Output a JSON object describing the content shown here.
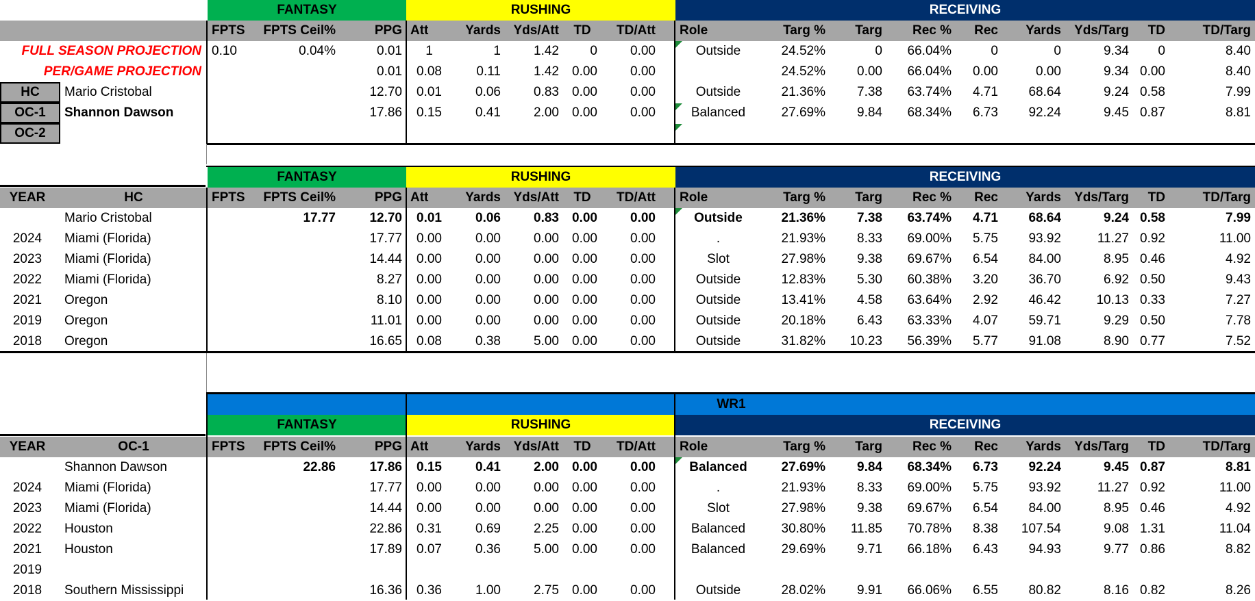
{
  "sections": {
    "fantasy": "FANTASY",
    "rushing": "RUSHING",
    "receiving": "RECEIVING",
    "wr1": "WR1"
  },
  "col_headers": [
    "FPTS",
    "FPTS Ceil%",
    "PPG",
    "Att",
    "Yards",
    "Yds/Att",
    "TD",
    "TD/Att",
    "Role",
    "Targ %",
    "Targ",
    "Rec %",
    "Rec",
    "Yards",
    "Yds/Targ",
    "TD",
    "TD/Targ"
  ],
  "projection": {
    "full_label": "FULL SEASON PROJECTION",
    "pergame_label": "PER/GAME PROJECTION",
    "full": [
      "0.10",
      "0.04%",
      "0.01",
      "1",
      "1",
      "1.42",
      "0",
      "0.00",
      "Outside",
      "24.52%",
      "0",
      "66.04%",
      "0",
      "0",
      "9.34",
      "0",
      "8.40"
    ],
    "pergame": [
      "",
      "",
      "0.01",
      "0.08",
      "0.11",
      "1.42",
      "0.00",
      "0.00",
      "",
      "24.52%",
      "0.00",
      "66.04%",
      "0.00",
      "0.00",
      "9.34",
      "0.00",
      "8.40"
    ]
  },
  "coaches": [
    {
      "role": "HC",
      "name": "Mario Cristobal",
      "values": [
        "",
        "",
        "12.70",
        "0.01",
        "0.06",
        "0.83",
        "0.00",
        "0.00",
        "Outside",
        "21.36%",
        "7.38",
        "63.74%",
        "4.71",
        "68.64",
        "9.24",
        "0.58",
        "7.99"
      ]
    },
    {
      "role": "OC-1",
      "name": "Shannon Dawson",
      "values": [
        "",
        "",
        "17.86",
        "0.15",
        "0.41",
        "2.00",
        "0.00",
        "0.00",
        "Balanced",
        "27.69%",
        "9.84",
        "68.34%",
        "6.73",
        "92.24",
        "9.45",
        "0.87",
        "8.81"
      ]
    },
    {
      "role": "OC-2",
      "name": "",
      "values": [
        "",
        "",
        "",
        "",
        "",
        "",
        "",
        "",
        "",
        "",
        "",
        "",
        "",
        "",
        "",
        "",
        ""
      ]
    }
  ],
  "hc_table": {
    "year_header": "YEAR",
    "name_header": "HC",
    "summary": {
      "year": "",
      "name": "Mario Cristobal",
      "values": [
        "",
        "17.77",
        "12.70",
        "0.01",
        "0.06",
        "0.83",
        "0.00",
        "0.00",
        "Outside",
        "21.36%",
        "7.38",
        "63.74%",
        "4.71",
        "68.64",
        "9.24",
        "0.58",
        "7.99"
      ]
    },
    "rows": [
      {
        "year": "2024",
        "name": "Miami (Florida)",
        "values": [
          "",
          "",
          "17.77",
          "0.00",
          "0.00",
          "0.00",
          "0.00",
          "0.00",
          ".",
          "21.93%",
          "8.33",
          "69.00%",
          "5.75",
          "93.92",
          "11.27",
          "0.92",
          "11.00"
        ]
      },
      {
        "year": "2023",
        "name": "Miami (Florida)",
        "values": [
          "",
          "",
          "14.44",
          "0.00",
          "0.00",
          "0.00",
          "0.00",
          "0.00",
          "Slot",
          "27.98%",
          "9.38",
          "69.67%",
          "6.54",
          "84.00",
          "8.95",
          "0.46",
          "4.92"
        ]
      },
      {
        "year": "2022",
        "name": "Miami (Florida)",
        "values": [
          "",
          "",
          "8.27",
          "0.00",
          "0.00",
          "0.00",
          "0.00",
          "0.00",
          "Outside",
          "12.83%",
          "5.30",
          "60.38%",
          "3.20",
          "36.70",
          "6.92",
          "0.50",
          "9.43"
        ]
      },
      {
        "year": "2021",
        "name": "Oregon",
        "values": [
          "",
          "",
          "8.10",
          "0.00",
          "0.00",
          "0.00",
          "0.00",
          "0.00",
          "Outside",
          "13.41%",
          "4.58",
          "63.64%",
          "2.92",
          "46.42",
          "10.13",
          "0.33",
          "7.27"
        ]
      },
      {
        "year": "2019",
        "name": "Oregon",
        "values": [
          "",
          "",
          "11.01",
          "0.00",
          "0.00",
          "0.00",
          "0.00",
          "0.00",
          "Outside",
          "20.18%",
          "6.43",
          "63.33%",
          "4.07",
          "59.71",
          "9.29",
          "0.50",
          "7.78"
        ]
      },
      {
        "year": "2018",
        "name": "Oregon",
        "values": [
          "",
          "",
          "16.65",
          "0.08",
          "0.38",
          "5.00",
          "0.00",
          "0.00",
          "Outside",
          "31.82%",
          "10.23",
          "56.39%",
          "5.77",
          "91.08",
          "8.90",
          "0.77",
          "7.52"
        ]
      }
    ]
  },
  "oc_table": {
    "year_header": "YEAR",
    "name_header": "OC-1",
    "summary": {
      "year": "",
      "name": "Shannon Dawson",
      "values": [
        "",
        "22.86",
        "17.86",
        "0.15",
        "0.41",
        "2.00",
        "0.00",
        "0.00",
        "Balanced",
        "27.69%",
        "9.84",
        "68.34%",
        "6.73",
        "92.24",
        "9.45",
        "0.87",
        "8.81"
      ]
    },
    "rows": [
      {
        "year": "2024",
        "name": "Miami (Florida)",
        "values": [
          "",
          "",
          "17.77",
          "0.00",
          "0.00",
          "0.00",
          "0.00",
          "0.00",
          ".",
          "21.93%",
          "8.33",
          "69.00%",
          "5.75",
          "93.92",
          "11.27",
          "0.92",
          "11.00"
        ]
      },
      {
        "year": "2023",
        "name": "Miami (Florida)",
        "values": [
          "",
          "",
          "14.44",
          "0.00",
          "0.00",
          "0.00",
          "0.00",
          "0.00",
          "Slot",
          "27.98%",
          "9.38",
          "69.67%",
          "6.54",
          "84.00",
          "8.95",
          "0.46",
          "4.92"
        ]
      },
      {
        "year": "2022",
        "name": "Houston",
        "values": [
          "",
          "",
          "22.86",
          "0.31",
          "0.69",
          "2.25",
          "0.00",
          "0.00",
          "Balanced",
          "30.80%",
          "11.85",
          "70.78%",
          "8.38",
          "107.54",
          "9.08",
          "1.31",
          "11.04"
        ]
      },
      {
        "year": "2021",
        "name": "Houston",
        "values": [
          "",
          "",
          "17.89",
          "0.07",
          "0.36",
          "5.00",
          "0.00",
          "0.00",
          "Balanced",
          "29.69%",
          "9.71",
          "66.18%",
          "6.43",
          "94.93",
          "9.77",
          "0.86",
          "8.82"
        ]
      },
      {
        "year": "2019",
        "name": "",
        "values": [
          "",
          "",
          "",
          "",
          "",
          "",
          "",
          "",
          "",
          "",
          "",
          "",
          "",
          "",
          "",
          "",
          ""
        ]
      },
      {
        "year": "2018",
        "name": "Southern Mississippi",
        "values": [
          "",
          "",
          "16.36",
          "0.36",
          "1.00",
          "2.75",
          "0.00",
          "0.00",
          "Outside",
          "28.02%",
          "9.91",
          "66.06%",
          "6.55",
          "80.82",
          "8.16",
          "0.82",
          "8.26"
        ]
      }
    ]
  }
}
